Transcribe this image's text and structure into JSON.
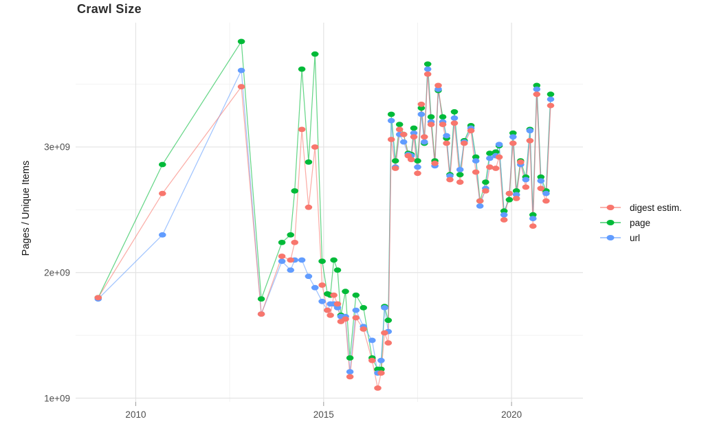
{
  "title": "Crawl Size",
  "axes": {
    "y_title": "Pages / Unique Items",
    "x_ticks": [
      {
        "label": "2010",
        "year": 2010
      },
      {
        "label": "2015",
        "year": 2015
      },
      {
        "label": "2020",
        "year": 2020
      }
    ],
    "y_ticks": [
      {
        "label": "1e+09",
        "value": 1000000000.0
      },
      {
        "label": "2e+09",
        "value": 2000000000.0
      },
      {
        "label": "3e+09",
        "value": 3000000000.0
      }
    ],
    "x_minor": [
      2012.5,
      2017.5
    ],
    "y_minor": [
      1500000000.0,
      2500000000.0,
      3500000000.0
    ]
  },
  "legend": {
    "items": [
      {
        "label": "digest estim.",
        "color": "#F8766D"
      },
      {
        "label": "page",
        "color": "#00BA38"
      },
      {
        "label": "url",
        "color": "#619CFF"
      }
    ]
  },
  "colors": {
    "grid_major": "#e3e3e3",
    "grid_minor": "#f2f2f2",
    "tick_text": "#4d4d4d",
    "title_text": "#2b2b2b"
  },
  "chart_data": {
    "type": "line",
    "title": "Crawl Size",
    "xlabel": "",
    "ylabel": "Pages / Unique Items",
    "x_unit": "decimal_year",
    "grid": true,
    "legend_position": "right",
    "xlim": [
      2008.4,
      2021.9
    ],
    "ylim": [
      970000000.0,
      3990000000.0
    ],
    "x": [
      2009.0,
      2010.71,
      2012.81,
      2013.34,
      2013.89,
      2014.12,
      2014.23,
      2014.42,
      2014.6,
      2014.77,
      2014.96,
      2015.1,
      2015.18,
      2015.27,
      2015.37,
      2015.46,
      2015.58,
      2015.7,
      2015.86,
      2016.06,
      2016.29,
      2016.44,
      2016.53,
      2016.62,
      2016.72,
      2016.8,
      2016.91,
      2017.02,
      2017.13,
      2017.25,
      2017.33,
      2017.4,
      2017.5,
      2017.6,
      2017.68,
      2017.77,
      2017.86,
      2017.96,
      2018.05,
      2018.17,
      2018.27,
      2018.36,
      2018.48,
      2018.63,
      2018.74,
      2018.92,
      2019.05,
      2019.16,
      2019.31,
      2019.42,
      2019.58,
      2019.67,
      2019.8,
      2019.94,
      2020.04,
      2020.13,
      2020.24,
      2020.38,
      2020.49,
      2020.57,
      2020.67,
      2020.78,
      2020.92,
      2021.04
    ],
    "series": [
      {
        "name": "page",
        "color": "#00BA38",
        "values": [
          1800000000.0,
          2860000000.0,
          3840000000.0,
          1790000000.0,
          2240000000.0,
          2300000000.0,
          2650000000.0,
          3620000000.0,
          2880000000.0,
          3740000000.0,
          2090000000.0,
          1830000000.0,
          1820000000.0,
          2100000000.0,
          2020000000.0,
          1660000000.0,
          1850000000.0,
          1320000000.0,
          1820000000.0,
          1720000000.0,
          1320000000.0,
          1230000000.0,
          1230000000.0,
          1730000000.0,
          1620000000.0,
          3260000000.0,
          2890000000.0,
          3180000000.0,
          3100000000.0,
          2950000000.0,
          2940000000.0,
          3150000000.0,
          2890000000.0,
          3310000000.0,
          3030000000.0,
          3660000000.0,
          3240000000.0,
          2890000000.0,
          3450000000.0,
          3240000000.0,
          3070000000.0,
          2780000000.0,
          3280000000.0,
          2780000000.0,
          3050000000.0,
          3170000000.0,
          2920000000.0,
          2570000000.0,
          2720000000.0,
          2950000000.0,
          2960000000.0,
          3010000000.0,
          2490000000.0,
          2580000000.0,
          3110000000.0,
          2650000000.0,
          2890000000.0,
          2760000000.0,
          3140000000.0,
          2460000000.0,
          3490000000.0,
          2760000000.0,
          2650000000.0,
          3420000000.0
        ]
      },
      {
        "name": "url",
        "color": "#619CFF",
        "values": [
          1790000000.0,
          2300000000.0,
          3610000000.0,
          1670000000.0,
          2090000000.0,
          2020000000.0,
          2100000000.0,
          2100000000.0,
          1970000000.0,
          1880000000.0,
          1770000000.0,
          1700000000.0,
          1750000000.0,
          1750000000.0,
          1720000000.0,
          1650000000.0,
          1650000000.0,
          1210000000.0,
          1700000000.0,
          1570000000.0,
          1460000000.0,
          1200000000.0,
          1300000000.0,
          1720000000.0,
          1530000000.0,
          3210000000.0,
          2840000000.0,
          3100000000.0,
          3040000000.0,
          2940000000.0,
          2930000000.0,
          3110000000.0,
          2840000000.0,
          3260000000.0,
          3040000000.0,
          3620000000.0,
          3200000000.0,
          2850000000.0,
          3460000000.0,
          3200000000.0,
          3090000000.0,
          2770000000.0,
          3230000000.0,
          2820000000.0,
          3040000000.0,
          3150000000.0,
          2890000000.0,
          2530000000.0,
          2670000000.0,
          2910000000.0,
          2930000000.0,
          3020000000.0,
          2460000000.0,
          2630000000.0,
          3080000000.0,
          2620000000.0,
          2860000000.0,
          2740000000.0,
          3130000000.0,
          2430000000.0,
          3460000000.0,
          2730000000.0,
          2630000000.0,
          3380000000.0
        ]
      },
      {
        "name": "digest estim.",
        "color": "#F8766D",
        "values": [
          1800000000.0,
          2630000000.0,
          3480000000.0,
          1670000000.0,
          2130000000.0,
          2100000000.0,
          2240000000.0,
          3140000000.0,
          2520000000.0,
          3000000000.0,
          1900000000.0,
          1700000000.0,
          1660000000.0,
          1820000000.0,
          1750000000.0,
          1610000000.0,
          1630000000.0,
          1170000000.0,
          1640000000.0,
          1550000000.0,
          1300000000.0,
          1080000000.0,
          1200000000.0,
          1520000000.0,
          1440000000.0,
          3060000000.0,
          2830000000.0,
          3140000000.0,
          3100000000.0,
          2930000000.0,
          2900000000.0,
          3080000000.0,
          2790000000.0,
          3340000000.0,
          3080000000.0,
          3580000000.0,
          3180000000.0,
          2870000000.0,
          3490000000.0,
          3180000000.0,
          3030000000.0,
          2740000000.0,
          3190000000.0,
          2720000000.0,
          3030000000.0,
          3130000000.0,
          2800000000.0,
          2570000000.0,
          2650000000.0,
          2840000000.0,
          2830000000.0,
          2920000000.0,
          2420000000.0,
          2630000000.0,
          3030000000.0,
          2590000000.0,
          2880000000.0,
          2680000000.0,
          3050000000.0,
          2370000000.0,
          3420000000.0,
          2670000000.0,
          2570000000.0,
          3330000000.0
        ]
      }
    ]
  }
}
